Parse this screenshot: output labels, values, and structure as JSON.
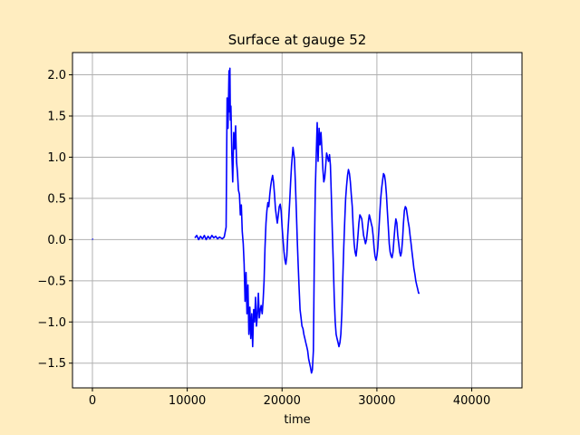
{
  "chart_data": {
    "type": "line",
    "title": "Surface at gauge 52",
    "xlabel": "time",
    "ylabel": "",
    "xlim": [
      -2100,
      45300
    ],
    "ylim": [
      -1.8,
      2.27
    ],
    "xticks": [
      0,
      10000,
      20000,
      30000,
      40000
    ],
    "xtick_labels": [
      "0",
      "10000",
      "20000",
      "30000",
      "40000"
    ],
    "yticks": [
      -1.5,
      -1.0,
      -0.5,
      0.0,
      0.5,
      1.0,
      1.5,
      2.0
    ],
    "ytick_labels": [
      "−1.5",
      "−1.0",
      "−0.5",
      "0.0",
      "0.5",
      "1.0",
      "1.5",
      "2.0"
    ],
    "grid": true,
    "line_color": "#0000ff",
    "series": [
      {
        "segments": [
          [
            [
              0,
              0.01
            ],
            [
              40,
              0.0
            ]
          ],
          [
            [
              10800,
              0.02
            ],
            [
              11000,
              0.05
            ],
            [
              11200,
              0.0
            ],
            [
              11400,
              0.04
            ],
            [
              11600,
              0.01
            ],
            [
              11800,
              0.05
            ],
            [
              12000,
              0.0
            ],
            [
              12200,
              0.04
            ],
            [
              12400,
              0.01
            ],
            [
              12600,
              0.05
            ],
            [
              12800,
              0.02
            ],
            [
              13000,
              0.04
            ],
            [
              13200,
              0.01
            ],
            [
              13400,
              0.03
            ],
            [
              13700,
              0.01
            ],
            [
              13900,
              0.03
            ],
            [
              14100,
              0.15
            ],
            [
              14200,
              1.72
            ],
            [
              14300,
              1.35
            ],
            [
              14400,
              2.05
            ],
            [
              14450,
              1.55
            ],
            [
              14500,
              2.08
            ],
            [
              14550,
              1.45
            ],
            [
              14600,
              1.62
            ],
            [
              14700,
              1.05
            ],
            [
              14800,
              0.7
            ],
            [
              14900,
              1.3
            ],
            [
              15000,
              1.1
            ],
            [
              15100,
              1.38
            ],
            [
              15200,
              0.95
            ],
            [
              15300,
              0.8
            ],
            [
              15400,
              0.6
            ],
            [
              15500,
              0.55
            ],
            [
              15600,
              0.3
            ],
            [
              15700,
              0.42
            ],
            [
              15800,
              0.1
            ],
            [
              15900,
              -0.05
            ],
            [
              16000,
              -0.3
            ],
            [
              16100,
              -0.75
            ],
            [
              16200,
              -0.4
            ],
            [
              16300,
              -0.9
            ],
            [
              16400,
              -0.55
            ],
            [
              16500,
              -1.15
            ],
            [
              16600,
              -0.82
            ],
            [
              16700,
              -1.2
            ],
            [
              16800,
              -0.9
            ],
            [
              16900,
              -1.3
            ],
            [
              17000,
              -0.85
            ],
            [
              17100,
              -1.0
            ],
            [
              17200,
              -0.7
            ],
            [
              17300,
              -1.05
            ],
            [
              17400,
              -0.9
            ],
            [
              17500,
              -0.65
            ],
            [
              17600,
              -0.95
            ],
            [
              17700,
              -0.85
            ],
            [
              17800,
              -0.8
            ],
            [
              17900,
              -0.9
            ],
            [
              18000,
              -0.75
            ],
            [
              18100,
              -0.5
            ],
            [
              18200,
              -0.1
            ],
            [
              18300,
              0.2
            ],
            [
              18400,
              0.35
            ],
            [
              18500,
              0.45
            ],
            [
              18600,
              0.4
            ],
            [
              18700,
              0.55
            ],
            [
              18800,
              0.65
            ],
            [
              18900,
              0.72
            ],
            [
              19000,
              0.78
            ],
            [
              19100,
              0.7
            ],
            [
              19200,
              0.55
            ],
            [
              19300,
              0.38
            ],
            [
              19400,
              0.28
            ],
            [
              19500,
              0.2
            ],
            [
              19600,
              0.3
            ],
            [
              19700,
              0.4
            ],
            [
              19800,
              0.43
            ],
            [
              19900,
              0.35
            ],
            [
              20000,
              0.15
            ],
            [
              20100,
              0.0
            ],
            [
              20200,
              -0.15
            ],
            [
              20300,
              -0.25
            ],
            [
              20400,
              -0.3
            ],
            [
              20500,
              -0.2
            ],
            [
              20600,
              0.05
            ],
            [
              20700,
              0.25
            ],
            [
              20800,
              0.45
            ],
            [
              20900,
              0.7
            ],
            [
              21000,
              0.9
            ],
            [
              21100,
              1.05
            ],
            [
              21150,
              1.12
            ],
            [
              21200,
              1.08
            ],
            [
              21300,
              0.98
            ],
            [
              21400,
              0.7
            ],
            [
              21500,
              0.35
            ],
            [
              21600,
              0.0
            ],
            [
              21700,
              -0.3
            ],
            [
              21800,
              -0.6
            ],
            [
              21900,
              -0.85
            ],
            [
              22000,
              -0.95
            ],
            [
              22100,
              -1.05
            ],
            [
              22200,
              -1.08
            ],
            [
              22300,
              -1.15
            ],
            [
              22400,
              -1.2
            ],
            [
              22500,
              -1.25
            ],
            [
              22600,
              -1.3
            ],
            [
              22700,
              -1.35
            ],
            [
              22800,
              -1.45
            ],
            [
              22900,
              -1.5
            ],
            [
              23000,
              -1.55
            ],
            [
              23100,
              -1.62
            ],
            [
              23200,
              -1.58
            ],
            [
              23300,
              -1.35
            ],
            [
              23400,
              -0.25
            ],
            [
              23500,
              0.6
            ],
            [
              23600,
              1.0
            ],
            [
              23700,
              1.42
            ],
            [
              23800,
              0.95
            ],
            [
              23900,
              1.35
            ],
            [
              24000,
              1.15
            ],
            [
              24100,
              1.3
            ],
            [
              24200,
              1.1
            ],
            [
              24300,
              0.85
            ],
            [
              24400,
              0.7
            ],
            [
              24500,
              0.75
            ],
            [
              24600,
              0.9
            ],
            [
              24700,
              1.05
            ],
            [
              24800,
              1.0
            ],
            [
              24900,
              0.95
            ],
            [
              25000,
              1.03
            ],
            [
              25100,
              0.9
            ],
            [
              25200,
              0.5
            ],
            [
              25300,
              0.1
            ],
            [
              25400,
              -0.3
            ],
            [
              25500,
              -0.7
            ],
            [
              25600,
              -1.0
            ],
            [
              25700,
              -1.15
            ],
            [
              25800,
              -1.2
            ],
            [
              25900,
              -1.25
            ],
            [
              26000,
              -1.3
            ],
            [
              26100,
              -1.25
            ],
            [
              26200,
              -1.15
            ],
            [
              26300,
              -0.9
            ],
            [
              26400,
              -0.5
            ],
            [
              26500,
              -0.1
            ],
            [
              26600,
              0.2
            ],
            [
              26700,
              0.5
            ],
            [
              26800,
              0.65
            ],
            [
              26900,
              0.78
            ],
            [
              27000,
              0.85
            ],
            [
              27100,
              0.8
            ],
            [
              27200,
              0.7
            ],
            [
              27300,
              0.55
            ],
            [
              27400,
              0.4
            ],
            [
              27500,
              0.15
            ],
            [
              27600,
              -0.05
            ],
            [
              27700,
              -0.15
            ],
            [
              27800,
              -0.2
            ],
            [
              27900,
              -0.1
            ],
            [
              28000,
              0.05
            ],
            [
              28100,
              0.2
            ],
            [
              28200,
              0.3
            ],
            [
              28300,
              0.28
            ],
            [
              28400,
              0.25
            ],
            [
              28500,
              0.15
            ],
            [
              28600,
              0.05
            ],
            [
              28700,
              0.0
            ],
            [
              28800,
              -0.05
            ],
            [
              28900,
              0.0
            ],
            [
              29000,
              0.1
            ],
            [
              29100,
              0.22
            ],
            [
              29200,
              0.3
            ],
            [
              29300,
              0.25
            ],
            [
              29400,
              0.2
            ],
            [
              29500,
              0.15
            ],
            [
              29600,
              0.05
            ],
            [
              29700,
              -0.1
            ],
            [
              29800,
              -0.2
            ],
            [
              29900,
              -0.25
            ],
            [
              30000,
              -0.2
            ],
            [
              30100,
              -0.1
            ],
            [
              30200,
              0.1
            ],
            [
              30300,
              0.3
            ],
            [
              30400,
              0.5
            ],
            [
              30500,
              0.62
            ],
            [
              30600,
              0.72
            ],
            [
              30700,
              0.8
            ],
            [
              30800,
              0.78
            ],
            [
              30900,
              0.7
            ],
            [
              31000,
              0.55
            ],
            [
              31100,
              0.35
            ],
            [
              31200,
              0.15
            ],
            [
              31300,
              -0.05
            ],
            [
              31400,
              -0.15
            ],
            [
              31500,
              -0.2
            ],
            [
              31600,
              -0.22
            ],
            [
              31700,
              -0.15
            ],
            [
              31800,
              0.0
            ],
            [
              31900,
              0.15
            ],
            [
              32000,
              0.25
            ],
            [
              32100,
              0.2
            ],
            [
              32200,
              0.05
            ],
            [
              32300,
              -0.05
            ],
            [
              32400,
              -0.15
            ],
            [
              32500,
              -0.2
            ],
            [
              32600,
              -0.15
            ],
            [
              32700,
              0.0
            ],
            [
              32800,
              0.2
            ],
            [
              32900,
              0.35
            ],
            [
              33000,
              0.4
            ],
            [
              33100,
              0.38
            ],
            [
              33200,
              0.3
            ],
            [
              33300,
              0.22
            ],
            [
              33400,
              0.15
            ],
            [
              33500,
              0.05
            ],
            [
              33600,
              -0.05
            ],
            [
              33700,
              -0.15
            ],
            [
              33800,
              -0.25
            ],
            [
              33900,
              -0.35
            ],
            [
              34000,
              -0.42
            ],
            [
              34100,
              -0.5
            ],
            [
              34200,
              -0.55
            ],
            [
              34300,
              -0.6
            ],
            [
              34400,
              -0.65
            ],
            [
              34500,
              -0.65
            ]
          ]
        ]
      }
    ]
  }
}
